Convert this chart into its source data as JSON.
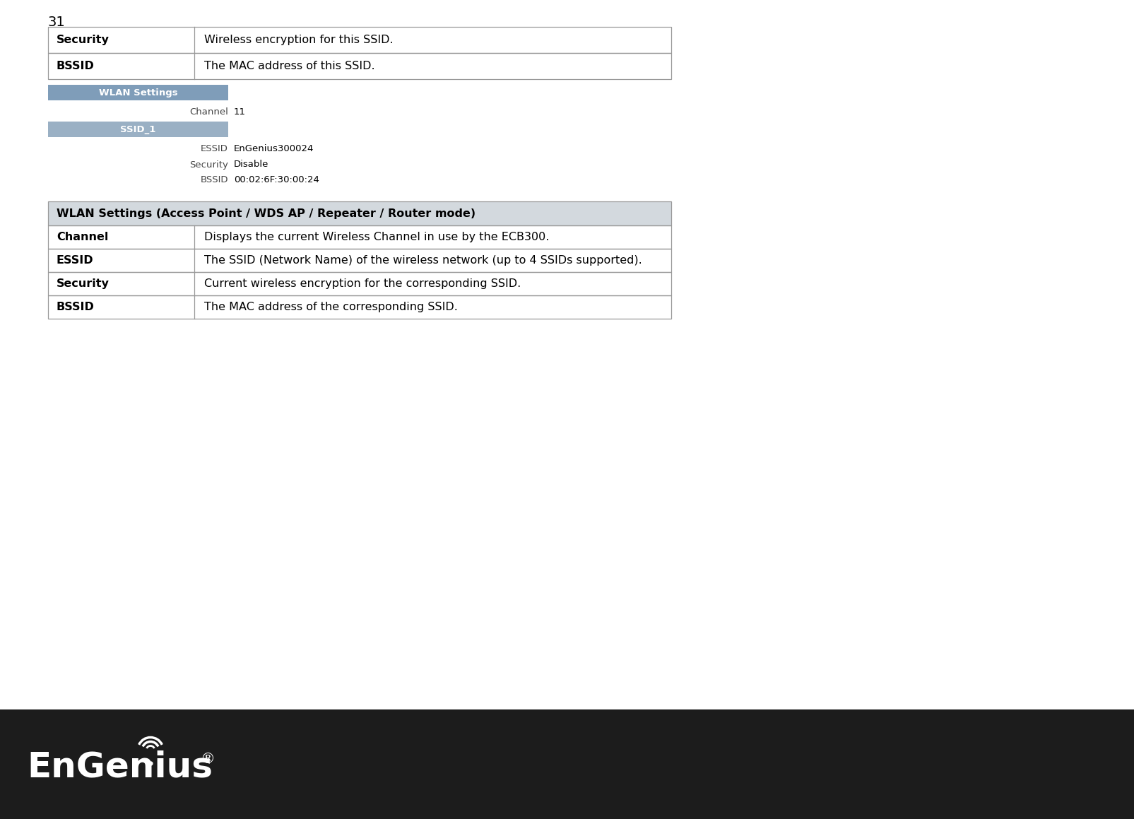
{
  "page_number": "31",
  "top_table": {
    "rows": [
      {
        "label": "Security",
        "desc": "Wireless encryption for this SSID."
      },
      {
        "label": "BSSID",
        "desc": "The MAC address of this SSID."
      }
    ]
  },
  "wlan_screenshot": {
    "header_text": "WLAN Settings",
    "header_bg": "#7f9db9",
    "header_text_color": "#ffffff",
    "ssid_text": "SSID_1",
    "ssid_bg": "#9ab0c4",
    "ssid_text_color": "#ffffff",
    "channel_label": "Channel",
    "channel_value": "11",
    "essid_label": "ESSID",
    "essid_value": "EnGenius300024",
    "security_label": "Security",
    "security_value": "Disable",
    "bssid_label": "BSSID",
    "bssid_value": "00:02:6F:30:00:24"
  },
  "bottom_table": {
    "header": "WLAN Settings (Access Point / WDS AP / Repeater / Router mode)",
    "header_bg": "#d3d9de",
    "rows": [
      {
        "label": "Channel",
        "desc": "Displays the current Wireless Channel in use by the ECB300."
      },
      {
        "label": "ESSID",
        "desc": "The SSID (Network Name) of the wireless network (up to 4 SSIDs supported)."
      },
      {
        "label": "Security",
        "desc": "Current wireless encryption for the corresponding SSID."
      },
      {
        "label": "BSSID",
        "desc": "The MAC address of the corresponding SSID."
      }
    ]
  },
  "footer": {
    "bg_color": "#1c1c1c",
    "text_color": "#ffffff"
  },
  "bg_color": "#ffffff",
  "text_color": "#000000",
  "border_color": "#999999"
}
